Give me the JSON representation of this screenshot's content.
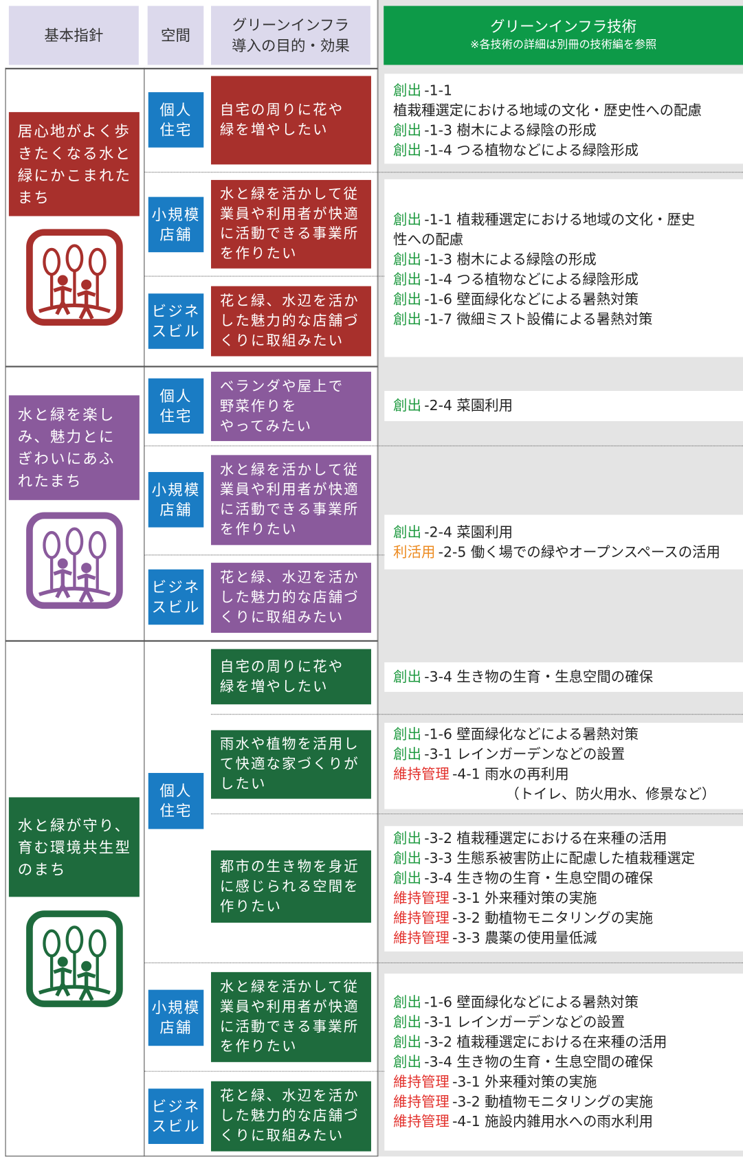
{
  "header": {
    "policy": "基本指針",
    "space": "空間",
    "purpose": [
      "グリーンインフラ",
      "導入の目的・効果"
    ],
    "tech": "グリーンインフラ技術",
    "tech_note": "※各技術の詳細は別冊の技術編を参照"
  },
  "sections": [
    {
      "policy": [
        "居心地がよく歩",
        "きたくなる水と",
        "緑にかこまれた",
        "まち"
      ],
      "spaces": [
        [
          "個人",
          "住宅"
        ],
        [
          "小規模",
          "店舗"
        ],
        [
          "ビジネ",
          "スビル"
        ]
      ],
      "purposes": [
        [
          "自宅の周りに花や",
          "緑を増やしたい"
        ],
        [
          "水と緑を活かして従",
          "業員や利用者が快適",
          "に活動できる事業所",
          "を作りたい"
        ],
        [
          "花と緑、水辺を活か",
          "した魅力的な店舗づ",
          "くりに取組みたい"
        ]
      ],
      "techs": [
        [
          {
            "tag": "創出",
            "tag_color": "#1f9a40",
            "text": "-1-1"
          },
          {
            "text": "植栽種選定における地域の文化・歴史性への配慮"
          },
          {
            "tag": "創出",
            "tag_color": "#1f9a40",
            "text": "-1-3 樹木による緑陰の形成"
          },
          {
            "tag": "創出",
            "tag_color": "#1f9a40",
            "text": "-1-4 つる植物などによる緑陰形成"
          }
        ],
        [
          {
            "tag": "創出",
            "tag_color": "#1f9a40",
            "text": "-1-1 植栽種選定における地域の文化・歴史"
          },
          {
            "text": "性への配慮"
          },
          {
            "tag": "創出",
            "tag_color": "#1f9a40",
            "text": "-1-3 樹木による緑陰の形成"
          },
          {
            "tag": "創出",
            "tag_color": "#1f9a40",
            "text": "-1-4 つる植物などによる緑陰形成"
          },
          {
            "tag": "創出",
            "tag_color": "#1f9a40",
            "text": "-1-6 壁面緑化などによる暑熱対策"
          },
          {
            "tag": "創出",
            "tag_color": "#1f9a40",
            "text": "-1-7 微細ミスト設備による暑熱対策"
          }
        ]
      ]
    },
    {
      "policy": [
        "水と緑を楽し",
        "み、魅力とに",
        "ぎわいにあふ",
        "れたまち"
      ],
      "spaces": [
        [
          "個人",
          "住宅"
        ],
        [
          "小規模",
          "店舗"
        ],
        [
          "ビジネ",
          "スビル"
        ]
      ],
      "purposes": [
        [
          "ベランダや屋上で",
          "野菜作りを",
          "やってみたい"
        ],
        [
          "水と緑を活かして従",
          "業員や利用者が快適",
          "に活動できる事業所",
          "を作りたい"
        ],
        [
          "花と緑、水辺を活か",
          "した魅力的な店舗づ",
          "くりに取組みたい"
        ]
      ],
      "techs": [
        [
          {
            "tag": "創出",
            "tag_color": "#1f9a40",
            "text": "-2-4 菜園利用"
          }
        ],
        [
          {
            "tag": "創出",
            "tag_color": "#1f9a40",
            "text": "-2-4 菜園利用"
          },
          {
            "tag": "利活用",
            "tag_color": "#ec8a1f",
            "text": "-2-5 働く場での緑やオープンスペースの活用"
          }
        ]
      ]
    },
    {
      "policy": [
        "水と緑が守り、",
        "育む環境共生型",
        "のまち"
      ],
      "spaces": [
        [
          "個人",
          "住宅"
        ],
        [
          "小規模",
          "店舗"
        ],
        [
          "ビジネ",
          "スビル"
        ]
      ],
      "purposes": [
        [
          "自宅の周りに花や",
          "緑を増やしたい"
        ],
        [
          "雨水や植物を活用し",
          "て快適な家づくりが",
          "したい"
        ],
        [
          "都市の生き物を身近",
          "に感じられる空間を",
          "作りたい"
        ],
        [
          "水と緑を活かして従",
          "業員や利用者が快適",
          "に活動できる事業所",
          "を作りたい"
        ],
        [
          "花と緑、水辺を活か",
          "した魅力的な店舗づ",
          "くりに取組みたい"
        ]
      ],
      "techs": [
        [
          {
            "tag": "創出",
            "tag_color": "#1f9a40",
            "text": "-3-4 生き物の生育・生息空間の確保"
          }
        ],
        [
          {
            "tag": "創出",
            "tag_color": "#1f9a40",
            "text": "-1-6 壁面緑化などによる暑熱対策"
          },
          {
            "tag": "創出",
            "tag_color": "#1f9a40",
            "text": "-3-1 レインガーデンなどの設置"
          },
          {
            "tag": "維持管理",
            "tag_color": "#e2302b",
            "text": "-4-1 雨水の再利用"
          },
          {
            "text": "（トイレ、防火用水、修景など）"
          }
        ],
        [
          {
            "tag": "創出",
            "tag_color": "#1f9a40",
            "text": "-3-2 植栽種選定における在来種の活用"
          },
          {
            "tag": "創出",
            "tag_color": "#1f9a40",
            "text": "-3-3 生態系被害防止に配慮した植栽種選定"
          },
          {
            "tag": "創出",
            "tag_color": "#1f9a40",
            "text": "-3-4 生き物の生育・生息空間の確保"
          },
          {
            "tag": "維持管理",
            "tag_color": "#e2302b",
            "text": "-3-1 外来種対策の実施"
          },
          {
            "tag": "維持管理",
            "tag_color": "#e2302b",
            "text": "-3-2 動植物モニタリングの実施"
          },
          {
            "tag": "維持管理",
            "tag_color": "#e2302b",
            "text": "-3-3 農薬の使用量低減"
          }
        ],
        [
          {
            "tag": "創出",
            "tag_color": "#1f9a40",
            "text": "-1-6 壁面緑化などによる暑熱対策"
          },
          {
            "tag": "創出",
            "tag_color": "#1f9a40",
            "text": "-3-1 レインガーデンなどの設置"
          },
          {
            "tag": "創出",
            "tag_color": "#1f9a40",
            "text": "-3-2 植栽種選定における在来種の活用"
          },
          {
            "tag": "創出",
            "tag_color": "#1f9a40",
            "text": "-3-4 生き物の生育・生息空間の確保"
          },
          {
            "tag": "維持管理",
            "tag_color": "#e2302b",
            "text": "-3-1 外来種対策の実施"
          },
          {
            "tag": "維持管理",
            "tag_color": "#e2302b",
            "text": "-3-2 動植物モニタリングの実施"
          },
          {
            "tag": "維持管理",
            "tag_color": "#e2302b",
            "text": "-4-1 施設内雑用水への雨水利用"
          }
        ]
      ]
    }
  ]
}
